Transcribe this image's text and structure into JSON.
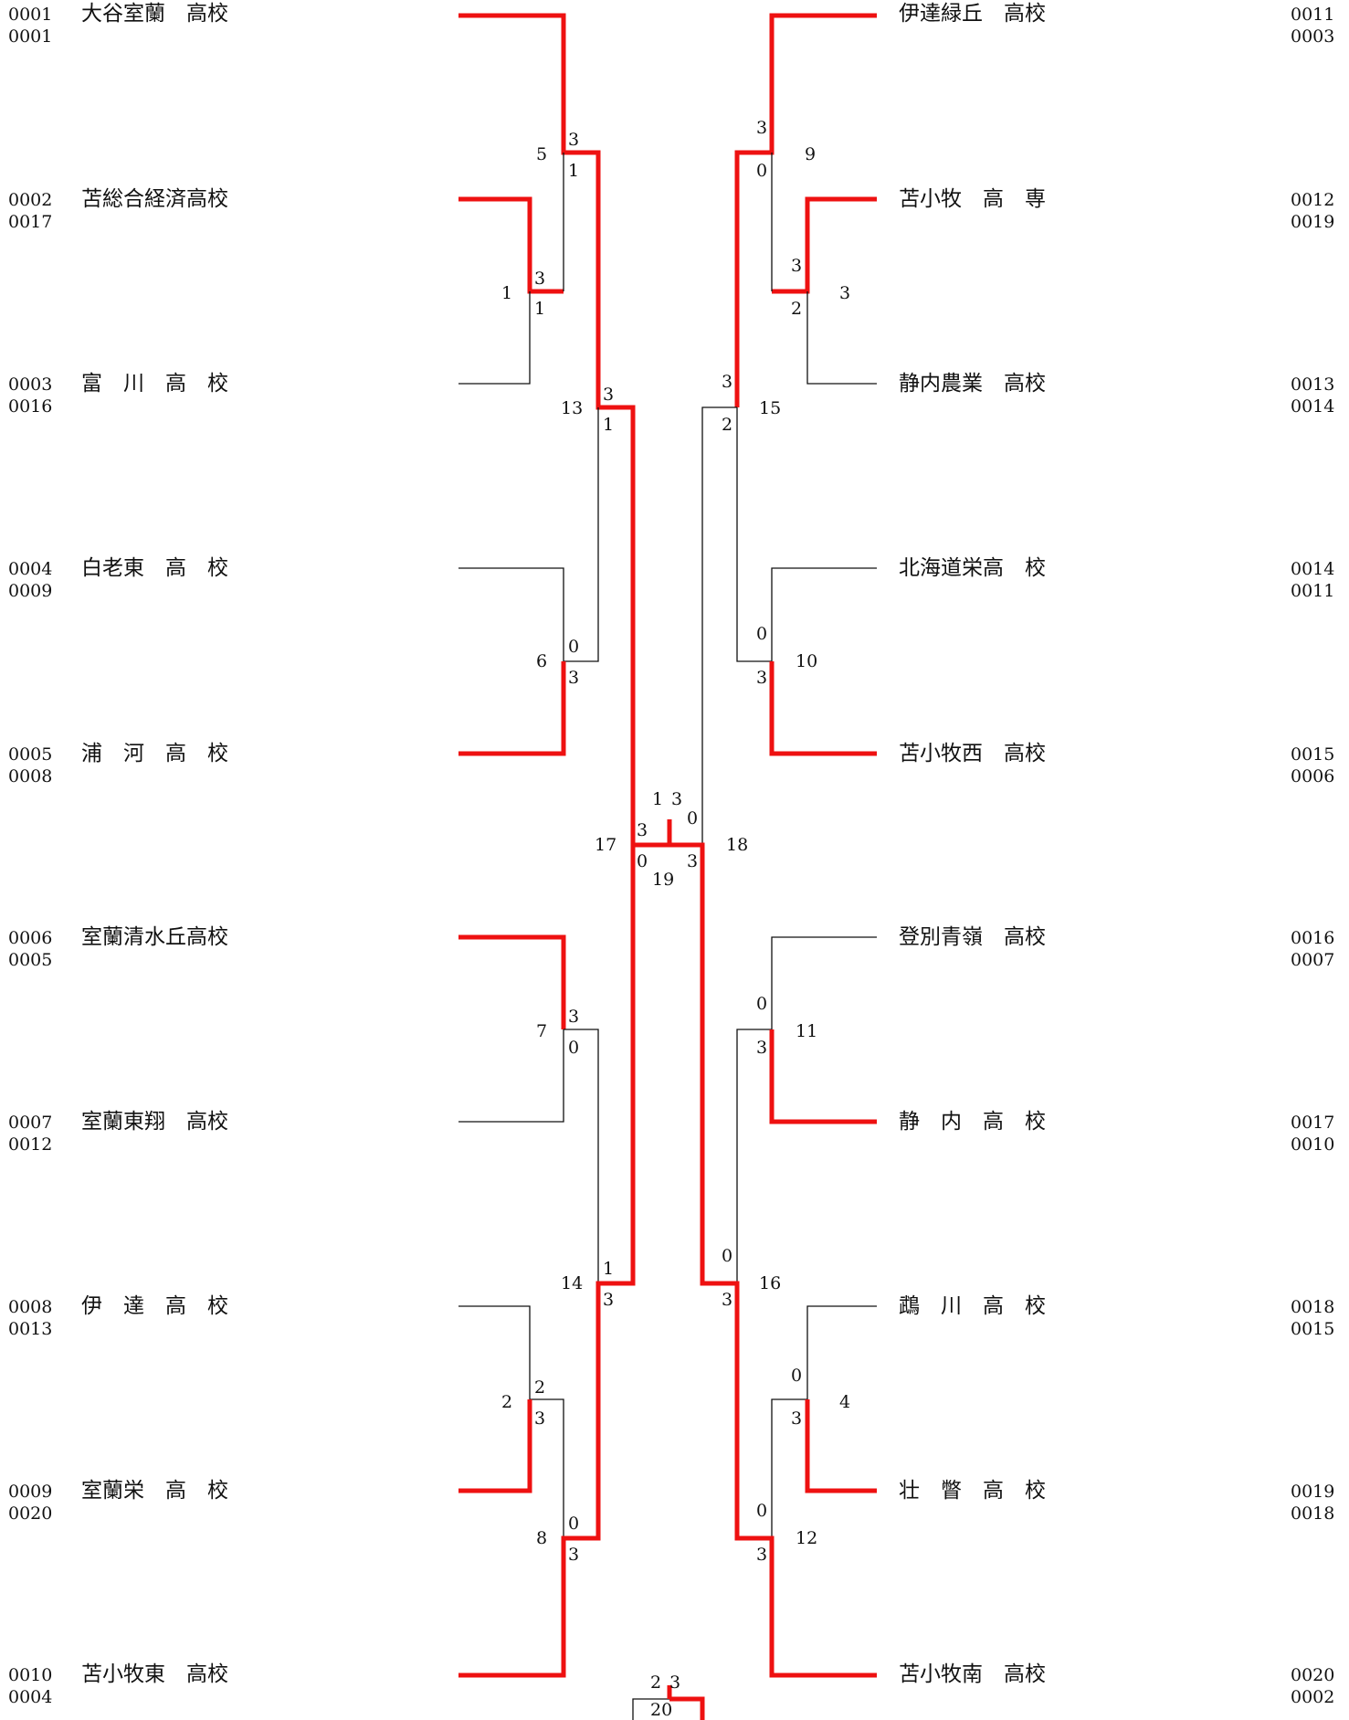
{
  "left_teams": [
    {
      "no": "0001",
      "sub": "0001",
      "name": "大谷室蘭　高校"
    },
    {
      "no": "0002",
      "sub": "0017",
      "name": "苫総合経済高校"
    },
    {
      "no": "0003",
      "sub": "0016",
      "name": "富　川　高　校"
    },
    {
      "no": "0004",
      "sub": "0009",
      "name": "白老東　高　校"
    },
    {
      "no": "0005",
      "sub": "0008",
      "name": "浦　河　高　校"
    },
    {
      "no": "0006",
      "sub": "0005",
      "name": "室蘭清水丘高校"
    },
    {
      "no": "0007",
      "sub": "0012",
      "name": "室蘭東翔　高校"
    },
    {
      "no": "0008",
      "sub": "0013",
      "name": "伊　達　高　校"
    },
    {
      "no": "0009",
      "sub": "0020",
      "name": "室蘭栄　高　校"
    },
    {
      "no": "0010",
      "sub": "0004",
      "name": "苫小牧東　高校"
    }
  ],
  "right_teams": [
    {
      "no": "0011",
      "sub": "0003",
      "name": "伊達緑丘　高校"
    },
    {
      "no": "0012",
      "sub": "0019",
      "name": "苫小牧　高　専"
    },
    {
      "no": "0013",
      "sub": "0014",
      "name": "静内農業　高校"
    },
    {
      "no": "0014",
      "sub": "0011",
      "name": "北海道栄高　校"
    },
    {
      "no": "0015",
      "sub": "0006",
      "name": "苫小牧西　高校"
    },
    {
      "no": "0016",
      "sub": "0007",
      "name": "登別青嶺　高校"
    },
    {
      "no": "0017",
      "sub": "0010",
      "name": "静　内　高　校"
    },
    {
      "no": "0018",
      "sub": "0015",
      "name": "鵡　川　高　校"
    },
    {
      "no": "0019",
      "sub": "0018",
      "name": "壮　瞥　高　校"
    },
    {
      "no": "0020",
      "sub": "0002",
      "name": "苫小牧南　高校"
    }
  ],
  "matches": [
    {
      "id": "1",
      "top": "3",
      "bottom": "1"
    },
    {
      "id": "2",
      "top": "2",
      "bottom": "3"
    },
    {
      "id": "3",
      "top": "3",
      "bottom": "2"
    },
    {
      "id": "4",
      "top": "0",
      "bottom": "3"
    },
    {
      "id": "5",
      "top": "3",
      "bottom": "1"
    },
    {
      "id": "6",
      "top": "0",
      "bottom": "3"
    },
    {
      "id": "7",
      "top": "3",
      "bottom": "0"
    },
    {
      "id": "8",
      "top": "0",
      "bottom": "3"
    },
    {
      "id": "9",
      "top": "3",
      "bottom": "0"
    },
    {
      "id": "10",
      "top": "0",
      "bottom": "3"
    },
    {
      "id": "11",
      "top": "0",
      "bottom": "3"
    },
    {
      "id": "12",
      "top": "0",
      "bottom": "3"
    },
    {
      "id": "13",
      "top": "3",
      "bottom": "1"
    },
    {
      "id": "14",
      "top": "1",
      "bottom": "3"
    },
    {
      "id": "15",
      "top": "3",
      "bottom": "2"
    },
    {
      "id": "16",
      "top": "0",
      "bottom": "3"
    },
    {
      "id": "17",
      "top": "3",
      "bottom": "0"
    },
    {
      "id": "18",
      "top": "0",
      "bottom": "3"
    },
    {
      "id": "19",
      "left": "1",
      "right": "3"
    },
    {
      "id": "20",
      "left": "2",
      "right": "3"
    }
  ],
  "colors": {
    "winner": "#ee1111",
    "line": "#111111"
  }
}
